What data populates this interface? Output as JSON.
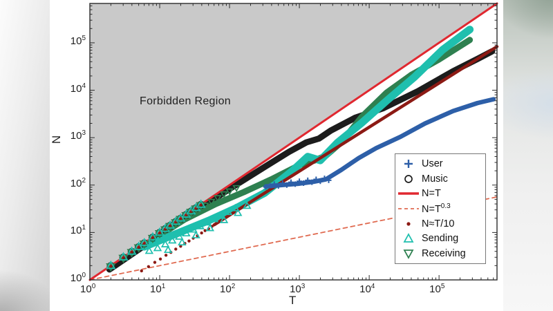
{
  "chart_data": {
    "type": "scatter",
    "title": "",
    "xlabel": "T",
    "ylabel": "N",
    "x_scale": "log",
    "y_scale": "log",
    "x_range_exponents": [
      0,
      5.83
    ],
    "y_range_exponents": [
      0,
      5.83
    ],
    "x_tick_exponents": [
      0,
      1,
      2,
      3,
      4,
      5
    ],
    "y_tick_exponents": [
      0,
      1,
      2,
      3,
      4,
      5
    ],
    "grid": false,
    "annotations": {
      "forbidden_region": {
        "label": "Forbidden Region",
        "fill_color": "#c9c9c9",
        "bounded_by": "N=T"
      }
    },
    "colors": {
      "identity_line": "#e02830",
      "power_law_line": "#e06a50",
      "t_over_10": "#8c1a14",
      "music": "#1c1c1c",
      "user": "#2d5fa8",
      "sending": "#1fbfae",
      "receiving": "#2e8050",
      "axis": "#2b2b2b"
    },
    "series": [
      {
        "name": "N=T",
        "style": "solid-line",
        "color": "#e02830",
        "width": 3,
        "log_points": [
          [
            0,
            0
          ],
          [
            5.83,
            5.83
          ]
        ]
      },
      {
        "name": "N=T^0.3",
        "style": "dashed-line",
        "color": "#e06a50",
        "width": 1.8,
        "dash": "6 5",
        "log_points": [
          [
            0,
            0
          ],
          [
            5.83,
            1.75
          ]
        ]
      },
      {
        "name": "Music",
        "style": "band",
        "color": "#1c1c1c",
        "width": 9,
        "log_points": [
          [
            0.28,
            0.22
          ],
          [
            0.8,
            0.74
          ],
          [
            1.4,
            1.33
          ],
          [
            2.0,
            1.92
          ],
          [
            2.5,
            2.38
          ],
          [
            2.85,
            2.7
          ],
          [
            3.1,
            2.9
          ],
          [
            3.28,
            2.98
          ],
          [
            3.45,
            3.15
          ],
          [
            3.8,
            3.42
          ],
          [
            4.2,
            3.62
          ],
          [
            4.7,
            3.98
          ],
          [
            5.2,
            4.4
          ],
          [
            5.55,
            4.66
          ],
          [
            5.76,
            4.82
          ]
        ]
      },
      {
        "name": "Receiving",
        "style": "band",
        "color": "#2e8050",
        "width": 9,
        "log_points": [
          [
            0.9,
            0.85
          ],
          [
            1.35,
            1.27
          ],
          [
            1.8,
            1.6
          ],
          [
            2.2,
            1.85
          ],
          [
            2.6,
            2.12
          ],
          [
            3.0,
            2.42
          ],
          [
            3.22,
            2.52
          ],
          [
            3.38,
            2.62
          ],
          [
            3.6,
            2.9
          ],
          [
            3.9,
            3.45
          ],
          [
            4.25,
            3.95
          ],
          [
            4.6,
            4.32
          ],
          [
            5.0,
            4.65
          ],
          [
            5.44,
            5.06
          ]
        ]
      },
      {
        "name": "Sending",
        "style": "band",
        "color": "#1fbfae",
        "width": 11,
        "log_points": [
          [
            0.78,
            0.7
          ],
          [
            1.2,
            0.95
          ],
          [
            1.7,
            1.25
          ],
          [
            2.1,
            1.52
          ],
          [
            2.5,
            1.83
          ],
          [
            2.9,
            2.3
          ],
          [
            3.12,
            2.6
          ],
          [
            3.3,
            2.52
          ],
          [
            3.55,
            2.9
          ],
          [
            3.9,
            3.32
          ],
          [
            4.25,
            3.78
          ],
          [
            4.65,
            4.28
          ],
          [
            5.05,
            4.85
          ],
          [
            5.44,
            5.28
          ]
        ]
      },
      {
        "name": "N≈T/10",
        "style": "dot-line",
        "color": "#8c1a14",
        "width": 4.5,
        "log_points": [
          [
            1.78,
            1.16
          ],
          [
            5.83,
            4.92
          ]
        ],
        "dot_log_points": [
          [
            0.74,
            0.19
          ],
          [
            0.84,
            0.28
          ],
          [
            0.93,
            0.37
          ],
          [
            1.01,
            0.44
          ],
          [
            1.09,
            0.52
          ],
          [
            1.16,
            0.58
          ],
          [
            1.23,
            0.65
          ],
          [
            1.3,
            0.71
          ],
          [
            1.36,
            0.77
          ],
          [
            1.42,
            0.82
          ],
          [
            1.48,
            0.88
          ],
          [
            1.54,
            0.93
          ],
          [
            1.6,
            0.99
          ],
          [
            1.65,
            1.04
          ],
          [
            1.7,
            1.08
          ],
          [
            1.75,
            1.13
          ]
        ]
      },
      {
        "name": "User",
        "style": "band",
        "color": "#2d5fa8",
        "width": 6.5,
        "log_points": [
          [
            2.52,
            1.97
          ],
          [
            2.75,
            2.0
          ],
          [
            3.0,
            2.03
          ],
          [
            3.2,
            2.07
          ],
          [
            3.38,
            2.12
          ],
          [
            3.6,
            2.32
          ],
          [
            3.85,
            2.57
          ],
          [
            4.1,
            2.78
          ],
          [
            4.45,
            3.02
          ],
          [
            4.8,
            3.3
          ],
          [
            5.2,
            3.56
          ],
          [
            5.55,
            3.73
          ],
          [
            5.78,
            3.81
          ]
        ],
        "plus_log_points": [
          [
            2.52,
            1.96
          ],
          [
            2.58,
            1.99
          ],
          [
            2.64,
            2.02
          ],
          [
            2.7,
            1.98
          ],
          [
            2.76,
            2.04
          ],
          [
            2.82,
            2.0
          ],
          [
            2.88,
            2.06
          ],
          [
            2.94,
            2.02
          ],
          [
            3.0,
            2.08
          ],
          [
            3.06,
            2.04
          ],
          [
            3.12,
            2.1
          ],
          [
            3.18,
            2.06
          ],
          [
            3.24,
            2.12
          ],
          [
            3.3,
            2.08
          ],
          [
            3.36,
            2.14
          ],
          [
            3.42,
            2.1
          ]
        ]
      }
    ],
    "overlap_markers": {
      "cluster_on_identity_log_x": [
        0.3,
        0.48,
        0.6,
        0.7,
        0.78,
        0.9,
        1.0,
        1.08,
        1.15,
        1.23,
        1.3,
        1.38,
        1.45,
        1.52,
        1.59
      ],
      "sending_stray_log_points": [
        [
          0.85,
          0.6
        ],
        [
          0.97,
          0.66
        ],
        [
          1.08,
          0.74
        ],
        [
          1.18,
          0.82
        ],
        [
          1.28,
          0.9
        ],
        [
          1.38,
          0.97
        ],
        [
          1.48,
          1.05
        ],
        [
          1.58,
          1.12
        ],
        [
          1.68,
          1.2
        ],
        [
          1.78,
          1.27
        ],
        [
          1.88,
          1.34
        ],
        [
          1.98,
          1.42
        ],
        [
          2.08,
          1.5
        ],
        [
          1.12,
          0.62
        ],
        [
          1.32,
          0.78
        ],
        [
          1.52,
          0.93
        ],
        [
          1.72,
          1.08
        ],
        [
          1.92,
          1.25
        ],
        [
          2.12,
          1.4
        ],
        [
          2.25,
          1.55
        ]
      ],
      "receiving_stray_log_points": [
        [
          1.65,
          1.58
        ],
        [
          1.74,
          1.66
        ],
        [
          1.83,
          1.74
        ],
        [
          1.92,
          1.82
        ],
        [
          2.0,
          1.88
        ],
        [
          2.1,
          1.95
        ]
      ]
    },
    "legend": {
      "position": "lower-right",
      "items": [
        {
          "label": "User",
          "marker": "plus",
          "color": "#2d5fa8"
        },
        {
          "label": "Music",
          "marker": "open-circle",
          "color": "#1c1c1c"
        },
        {
          "label": "N=T",
          "marker": "solid-line",
          "color": "#e02830"
        },
        {
          "label": "N=T",
          "sup": "0.3",
          "marker": "dashed-line",
          "color": "#e06a50"
        },
        {
          "label": "N≈T/10",
          "marker": "dot",
          "color": "#8c1a14"
        },
        {
          "label": "Sending",
          "marker": "triangle-up",
          "color": "#1fbfae"
        },
        {
          "label": "Receiving",
          "marker": "triangle-down",
          "color": "#2e8050"
        }
      ]
    }
  }
}
